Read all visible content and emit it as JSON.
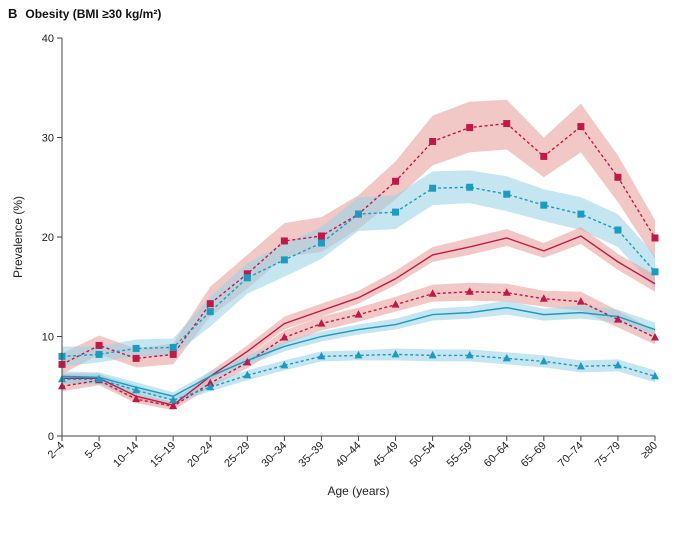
{
  "panel": {
    "letter": "B",
    "title": "Obesity (BMI ≥30 kg/m²)"
  },
  "chart_data": {
    "type": "line",
    "xlabel": "Age (years)",
    "ylabel": "Prevalence (%)",
    "ylim": [
      0,
      40
    ],
    "yticks": [
      0,
      10,
      20,
      30,
      40
    ],
    "categories": [
      "2–4",
      "5–9",
      "10–14",
      "15–19",
      "20–24",
      "25–29",
      "30–34",
      "35–39",
      "40–44",
      "45–49",
      "50–54",
      "55–59",
      "60–64",
      "65–69",
      "70–74",
      "75–79",
      "≥80"
    ],
    "series": [
      {
        "name": "Red dashed, squares",
        "color": "#c1184a",
        "band_color": "#e8a39f",
        "style": "dashed",
        "marker": "square",
        "values": [
          7.2,
          9.1,
          7.8,
          8.2,
          13.3,
          16.3,
          19.6,
          20.1,
          22.3,
          25.6,
          29.6,
          31.0,
          31.4,
          28.1,
          31.1,
          26.0,
          19.9
        ],
        "lower": [
          6.2,
          8.2,
          6.9,
          7.2,
          12.0,
          14.8,
          18.0,
          18.5,
          20.8,
          23.8,
          27.2,
          28.5,
          28.8,
          26.0,
          28.5,
          23.5,
          17.8
        ],
        "upper": [
          8.3,
          10.1,
          8.8,
          9.3,
          15.0,
          18.2,
          21.4,
          22.0,
          24.2,
          27.6,
          32.2,
          33.6,
          33.8,
          30.0,
          33.4,
          28.2,
          21.7
        ]
      },
      {
        "name": "Blue dashed, squares",
        "color": "#1a9bbf",
        "band_color": "#9fd3e8",
        "style": "dashed",
        "marker": "square",
        "values": [
          8.0,
          8.2,
          8.8,
          8.9,
          12.5,
          15.9,
          17.7,
          19.4,
          22.3,
          22.5,
          24.9,
          25.0,
          24.3,
          23.2,
          22.3,
          20.7,
          16.5
        ],
        "lower": [
          7.0,
          7.4,
          8.0,
          8.1,
          11.0,
          14.3,
          16.0,
          17.8,
          20.6,
          20.8,
          23.2,
          23.4,
          22.6,
          21.6,
          20.7,
          19.0,
          14.8
        ],
        "upper": [
          9.0,
          9.0,
          9.7,
          9.8,
          14.0,
          17.4,
          19.3,
          21.0,
          24.0,
          24.2,
          26.6,
          26.7,
          26.1,
          24.8,
          24.0,
          22.3,
          18.2
        ]
      },
      {
        "name": "Red solid",
        "color": "#c1184a",
        "band_color": "#e8a39f",
        "style": "solid",
        "marker": "none",
        "values": [
          5.8,
          5.8,
          4.0,
          3.1,
          6.0,
          8.5,
          11.3,
          12.6,
          13.9,
          15.8,
          18.2,
          19.0,
          19.9,
          18.6,
          20.1,
          17.5,
          15.3
        ],
        "lower": [
          5.3,
          5.3,
          3.6,
          2.8,
          5.6,
          8.0,
          10.7,
          12.0,
          13.3,
          15.2,
          17.5,
          18.2,
          19.1,
          17.9,
          19.3,
          16.7,
          14.5
        ],
        "upper": [
          6.3,
          6.3,
          4.4,
          3.4,
          6.5,
          9.1,
          12.0,
          13.3,
          14.6,
          16.6,
          19.0,
          19.9,
          20.8,
          19.4,
          21.0,
          18.3,
          16.2
        ]
      },
      {
        "name": "Red dashed, triangles",
        "color": "#c1184a",
        "band_color": "#e8a39f",
        "style": "dashed",
        "marker": "triangle",
        "values": [
          5.0,
          5.6,
          3.7,
          3.0,
          5.3,
          7.4,
          9.9,
          11.3,
          12.2,
          13.2,
          14.3,
          14.5,
          14.4,
          13.8,
          13.5,
          11.7,
          9.9
        ],
        "lower": [
          4.5,
          5.1,
          3.3,
          2.6,
          4.9,
          6.8,
          9.2,
          10.6,
          11.5,
          12.5,
          13.5,
          13.6,
          13.5,
          13.0,
          12.6,
          10.9,
          9.2
        ],
        "upper": [
          5.5,
          6.1,
          4.1,
          3.4,
          5.8,
          8.0,
          10.6,
          12.0,
          12.9,
          14.0,
          15.2,
          15.4,
          15.3,
          14.6,
          14.5,
          12.6,
          10.6
        ]
      },
      {
        "name": "Blue solid",
        "color": "#1a9bbf",
        "band_color": "#9fd3e8",
        "style": "solid",
        "marker": "none",
        "values": [
          6.0,
          5.9,
          4.9,
          4.0,
          6.0,
          7.6,
          9.0,
          10.0,
          10.7,
          11.2,
          12.2,
          12.4,
          12.9,
          12.2,
          12.4,
          12.0,
          10.7
        ],
        "lower": [
          5.5,
          5.4,
          4.4,
          3.6,
          5.6,
          7.1,
          8.5,
          9.5,
          10.2,
          10.7,
          11.6,
          11.8,
          12.2,
          11.6,
          11.8,
          11.4,
          10.0
        ],
        "upper": [
          6.5,
          6.4,
          5.4,
          4.4,
          6.5,
          8.1,
          9.5,
          10.5,
          11.2,
          11.8,
          12.8,
          13.0,
          13.6,
          12.8,
          13.1,
          12.7,
          11.4
        ]
      },
      {
        "name": "Blue dashed, triangles",
        "color": "#1a9bbf",
        "band_color": "#9fd3e8",
        "style": "dashed",
        "marker": "triangle",
        "values": [
          5.7,
          5.7,
          4.6,
          3.6,
          4.9,
          6.1,
          7.1,
          8.0,
          8.1,
          8.2,
          8.1,
          8.1,
          7.8,
          7.5,
          7.0,
          7.1,
          6.0
        ],
        "lower": [
          5.2,
          5.2,
          4.1,
          3.2,
          4.5,
          5.6,
          6.6,
          7.5,
          7.6,
          7.6,
          7.5,
          7.5,
          7.2,
          6.9,
          6.4,
          6.5,
          5.4
        ],
        "upper": [
          6.2,
          6.2,
          5.1,
          4.0,
          5.4,
          6.6,
          7.6,
          8.5,
          8.6,
          8.8,
          8.7,
          8.7,
          8.4,
          8.1,
          7.6,
          7.7,
          6.6
        ]
      }
    ]
  }
}
